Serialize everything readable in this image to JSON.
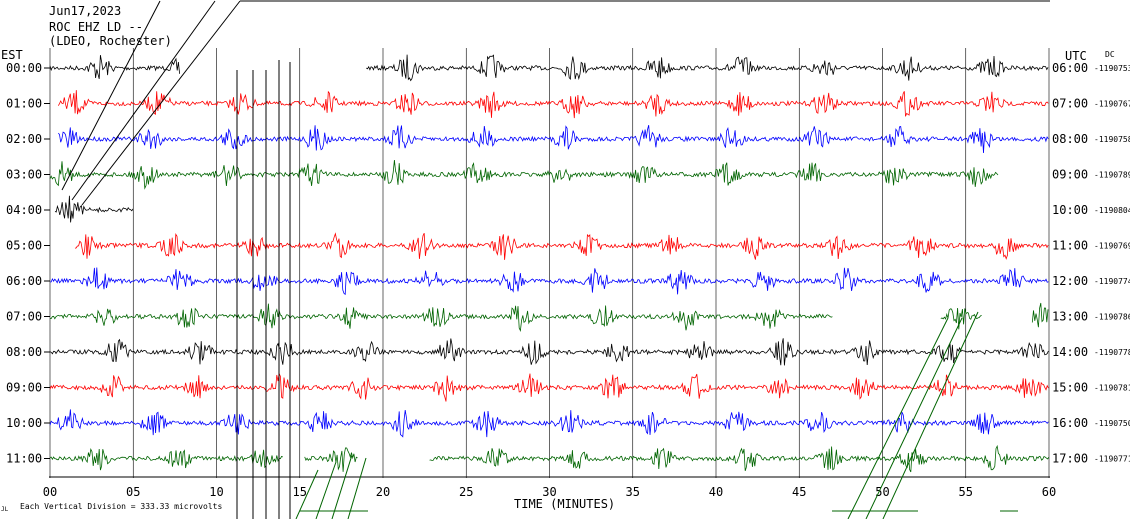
{
  "header": {
    "date": "Jun17,2023",
    "station": "ROC EHZ LD --",
    "location": "(LDEO, Rochester)"
  },
  "left_axis_title": "EST",
  "right_axis_title": "UTC",
  "dc_label": "DC",
  "footer": {
    "xlabel": "TIME (MINUTES)",
    "scale_note": "Each Vertical Division =  333.33 microvolts",
    "corner_mark": "JL"
  },
  "colors": {
    "black": "#000000",
    "red": "#ff0000",
    "blue": "#0000ff",
    "green": "#006400",
    "grid": "#000000"
  },
  "chart_data": {
    "type": "line",
    "title": "",
    "xlabel": "TIME (MINUTES)",
    "xlim": [
      0,
      60
    ],
    "x_ticks": [
      "00",
      "05",
      "10",
      "15",
      "20",
      "25",
      "30",
      "35",
      "40",
      "45",
      "50",
      "55",
      "60"
    ],
    "grid": true,
    "rows": [
      {
        "est": "00:00",
        "utc": "06:00",
        "dc": "-1190753",
        "color": "black",
        "segments": [
          [
            0,
            7.8
          ],
          [
            19.0,
            60
          ]
        ],
        "bursts": [
          3,
          8,
          21.5,
          26.5,
          31.5,
          36.5,
          41.5,
          46.5,
          51.5,
          56.5
        ]
      },
      {
        "est": "01:00",
        "utc": "07:00",
        "dc": "-1190767",
        "color": "red",
        "segments": [
          [
            0.5,
            60
          ]
        ],
        "bursts": [
          1.5,
          6.5,
          11.5,
          16.5,
          21.5,
          26.5,
          31.5,
          36.5,
          41.5,
          46.5,
          51.5,
          56.5
        ]
      },
      {
        "est": "02:00",
        "utc": "08:00",
        "dc": "-1190758",
        "color": "blue",
        "segments": [
          [
            0.5,
            60
          ]
        ],
        "bursts": [
          1,
          6,
          11,
          16,
          21,
          26,
          31,
          36,
          41,
          46,
          51,
          56
        ]
      },
      {
        "est": "03:00",
        "utc": "09:00",
        "dc": "-1190789",
        "color": "green",
        "segments": [
          [
            0,
            57
          ]
        ],
        "bursts": [
          0.7,
          5.7,
          10.7,
          15.7,
          20.7,
          25.7,
          30.7,
          35.7,
          40.7,
          45.7,
          50.7,
          55.7
        ]
      },
      {
        "est": "04:00",
        "utc": "10:00",
        "dc": "-1190804",
        "color": "black",
        "segments": [
          [
            0.3,
            5
          ]
        ],
        "bursts": [
          1.2
        ]
      },
      {
        "est": "05:00",
        "utc": "11:00",
        "dc": "-1190769",
        "color": "red",
        "segments": [
          [
            1.5,
            60
          ]
        ],
        "bursts": [
          2.3,
          7.3,
          12.3,
          17.3,
          22.3,
          27.3,
          32.3,
          37.3,
          42.3,
          47.3,
          52.3,
          57.3
        ]
      },
      {
        "est": "06:00",
        "utc": "12:00",
        "dc": "-1190774",
        "color": "blue",
        "segments": [
          [
            0,
            60
          ]
        ],
        "bursts": [
          2.8,
          7.8,
          12.8,
          17.8,
          22.8,
          27.8,
          32.8,
          37.8,
          42.8,
          47.8,
          52.8,
          57.8
        ]
      },
      {
        "est": "07:00",
        "utc": "13:00",
        "dc": "-1190786",
        "color": "green",
        "segments": [
          [
            0,
            47
          ],
          [
            53.5,
            56
          ],
          [
            59,
            60
          ]
        ],
        "bursts": [
          3.2,
          8.2,
          13.2,
          18.2,
          23.2,
          28.2,
          33.2,
          38.2,
          43.2,
          54.5,
          59.6
        ]
      },
      {
        "est": "08:00",
        "utc": "14:00",
        "dc": "-1190778",
        "color": "black",
        "segments": [
          [
            0,
            60
          ]
        ],
        "bursts": [
          4,
          9,
          14,
          19,
          24,
          29,
          34,
          39,
          44,
          49,
          54,
          59
        ]
      },
      {
        "est": "09:00",
        "utc": "15:00",
        "dc": "-1190781",
        "color": "red",
        "segments": [
          [
            0,
            60
          ]
        ],
        "bursts": [
          3.8,
          8.8,
          13.8,
          18.8,
          23.8,
          28.8,
          33.8,
          38.8,
          43.8,
          48.8,
          53.8,
          58.8
        ]
      },
      {
        "est": "10:00",
        "utc": "16:00",
        "dc": "-1190750",
        "color": "blue",
        "segments": [
          [
            0,
            60
          ]
        ],
        "bursts": [
          1.2,
          6.2,
          11.2,
          16.2,
          21.2,
          26.2,
          31.2,
          36.2,
          41.2,
          46.2,
          51.2,
          56.2
        ]
      },
      {
        "est": "11:00",
        "utc": "17:00",
        "dc": "-1190771",
        "color": "green",
        "segments": [
          [
            0,
            14
          ],
          [
            15.3,
            18.5
          ],
          [
            22.8,
            60
          ]
        ],
        "bursts": [
          2.8,
          7.8,
          12.8,
          17.5,
          26.8,
          31.8,
          36.8,
          41.8,
          46.8,
          51.8,
          56.8
        ]
      }
    ]
  }
}
